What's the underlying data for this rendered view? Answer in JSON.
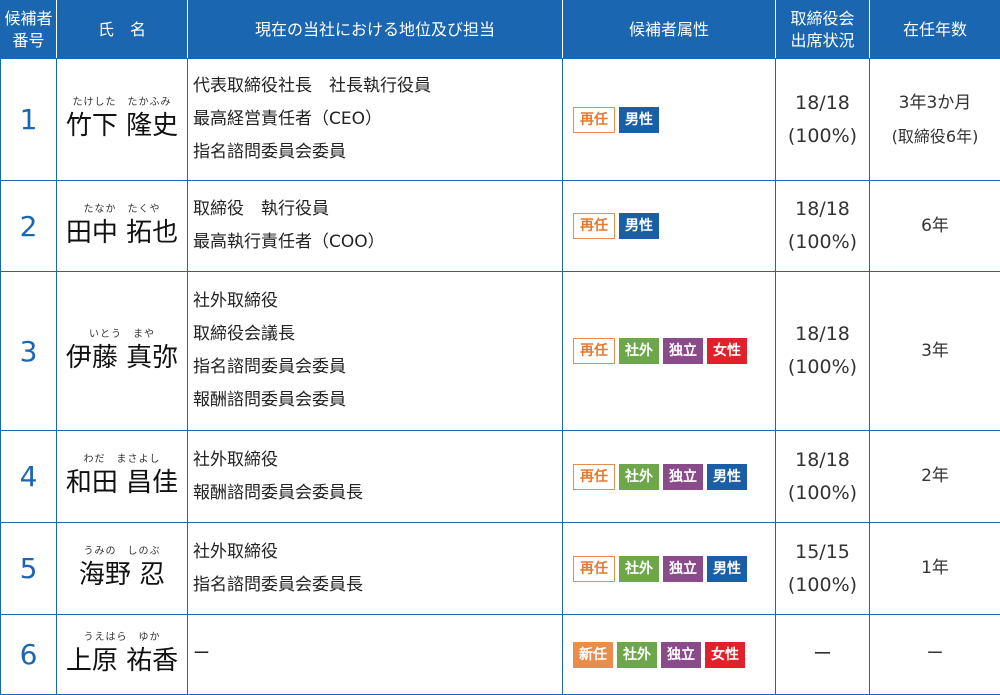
{
  "headers": {
    "no": "候補者\n番号",
    "name": "氏　名",
    "position": "現在の当社における地位及び担当",
    "attributes": "候補者属性",
    "attendance": "取締役会\n出席状況",
    "tenure": "在任年数"
  },
  "rows": [
    {
      "no": "1",
      "ruby": "たけした　たかふみ",
      "name": "竹下 隆史",
      "positions": [
        "代表取締役社長　社長執行役員",
        "最高経営責任者（CEO）",
        "指名諮問委員会委員"
      ],
      "tags": [
        {
          "label": "再任",
          "kind": "re"
        },
        {
          "label": "男性",
          "kind": "m"
        }
      ],
      "attendance": "18/18",
      "attendance_pct": "(100%)",
      "tenure": "3年3か月",
      "tenure_sub": "(取締役6年)"
    },
    {
      "no": "2",
      "ruby": "たなか　たくや",
      "name": "田中 拓也",
      "positions": [
        "取締役　執行役員",
        "最高執行責任者（COO）"
      ],
      "tags": [
        {
          "label": "再任",
          "kind": "re"
        },
        {
          "label": "男性",
          "kind": "m"
        }
      ],
      "attendance": "18/18",
      "attendance_pct": "(100%)",
      "tenure": "6年",
      "tenure_sub": ""
    },
    {
      "no": "3",
      "ruby": "いとう　まや",
      "name": "伊藤 真弥",
      "positions": [
        "社外取締役",
        "取締役会議長",
        "指名諮問委員会委員",
        "報酬諮問委員会委員"
      ],
      "tags": [
        {
          "label": "再任",
          "kind": "re"
        },
        {
          "label": "社外",
          "kind": "out"
        },
        {
          "label": "独立",
          "kind": "ind"
        },
        {
          "label": "女性",
          "kind": "f"
        }
      ],
      "attendance": "18/18",
      "attendance_pct": "(100%)",
      "tenure": "3年",
      "tenure_sub": ""
    },
    {
      "no": "4",
      "ruby": "わだ　まさよし",
      "name": "和田 昌佳",
      "positions": [
        "社外取締役",
        "報酬諮問委員会委員長"
      ],
      "tags": [
        {
          "label": "再任",
          "kind": "re"
        },
        {
          "label": "社外",
          "kind": "out"
        },
        {
          "label": "独立",
          "kind": "ind"
        },
        {
          "label": "男性",
          "kind": "m"
        }
      ],
      "attendance": "18/18",
      "attendance_pct": "(100%)",
      "tenure": "2年",
      "tenure_sub": ""
    },
    {
      "no": "5",
      "ruby": "うみの　しのぶ",
      "name": "海野 忍",
      "positions": [
        "社外取締役",
        "指名諮問委員会委員長"
      ],
      "tags": [
        {
          "label": "再任",
          "kind": "re"
        },
        {
          "label": "社外",
          "kind": "out"
        },
        {
          "label": "独立",
          "kind": "ind"
        },
        {
          "label": "男性",
          "kind": "m"
        }
      ],
      "attendance": "15/15",
      "attendance_pct": "(100%)",
      "tenure": "1年",
      "tenure_sub": ""
    },
    {
      "no": "6",
      "ruby": "うえはら　ゆか",
      "name": "上原 祐香",
      "positions": [
        "ー"
      ],
      "tags": [
        {
          "label": "新任",
          "kind": "new"
        },
        {
          "label": "社外",
          "kind": "out"
        },
        {
          "label": "独立",
          "kind": "ind"
        },
        {
          "label": "女性",
          "kind": "f"
        }
      ],
      "attendance": "ー",
      "attendance_pct": "",
      "tenure": "ー",
      "tenure_sub": ""
    }
  ],
  "colors": {
    "header_bg": "#1a66b0",
    "reappoint": "#e98d4d",
    "outside": "#6ea64a",
    "independent": "#8a4b8b",
    "male": "#1a5ea8",
    "female": "#e0202a"
  }
}
